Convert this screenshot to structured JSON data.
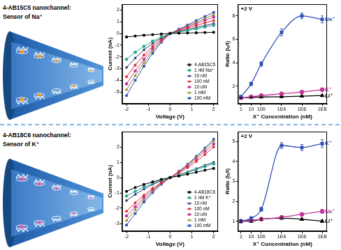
{
  "illustrations": [
    {
      "title": "4-AB15C5 nanochannel:",
      "subtitle": "Sensor of Na⁺"
    },
    {
      "title": "4-AB18C6 nanochannel:",
      "subtitle": "Sensor of K⁺"
    }
  ],
  "chart_data": [
    {
      "type": "line",
      "x_label": "Voltage (V)",
      "y_label": "Current (nA)",
      "x": [
        -2,
        -1.6,
        -1.2,
        -0.8,
        -0.4,
        0,
        0.4,
        0.8,
        1.2,
        1.6,
        2
      ],
      "xlim": [
        -2.2,
        2.2
      ],
      "xticks": [
        -2,
        -1,
        0,
        1,
        2
      ],
      "ylim": [
        -6,
        2.5
      ],
      "yticks": [
        -5,
        -4,
        -3,
        -2,
        -1,
        0,
        1,
        2
      ],
      "grid": false,
      "legend": "lower right",
      "series": [
        {
          "name": "4-AB15C5",
          "color": "#000000",
          "marker": "square",
          "line_style": "solid",
          "values": [
            -0.3,
            -0.22,
            -0.15,
            -0.1,
            -0.05,
            0,
            0.02,
            0.04,
            0.06,
            0.08,
            0.1
          ]
        },
        {
          "name": "1 nM Na⁺",
          "color": "#2aa58a",
          "marker": "circle",
          "line_style": "solid",
          "values": [
            -2.2,
            -1.6,
            -1.1,
            -0.65,
            -0.3,
            0,
            0.12,
            0.25,
            0.4,
            0.55,
            0.7
          ]
        },
        {
          "name": "10 nM",
          "color": "#2b2f6b",
          "marker": "triangle",
          "line_style": "solid",
          "values": [
            -2.9,
            -2.1,
            -1.4,
            -0.85,
            -0.38,
            0,
            0.16,
            0.33,
            0.5,
            0.68,
            0.85
          ]
        },
        {
          "name": "100 nM",
          "color": "#e0262b",
          "marker": "diamond",
          "line_style": "solid",
          "values": [
            -3.7,
            -2.7,
            -1.85,
            -1.1,
            -0.5,
            0,
            0.22,
            0.45,
            0.68,
            0.9,
            1.1
          ]
        },
        {
          "name": "10 uM",
          "color": "#c2389c",
          "marker": "circle",
          "line_style": "solid",
          "values": [
            -4.3,
            -3.2,
            -2.2,
            -1.3,
            -0.6,
            0,
            0.28,
            0.56,
            0.84,
            1.12,
            1.4
          ]
        },
        {
          "name": "1 mM",
          "color": "#8c8c1c",
          "marker": "triangle",
          "line_style": "solid",
          "values": [
            -4.8,
            -3.6,
            -2.5,
            -1.5,
            -0.68,
            0,
            0.32,
            0.64,
            0.96,
            1.28,
            1.6
          ]
        },
        {
          "name": "100 mM",
          "color": "#2d4fb5",
          "marker": "square",
          "line_style": "solid",
          "values": [
            -5.3,
            -4.0,
            -2.8,
            -1.7,
            -0.75,
            0,
            0.36,
            0.72,
            1.1,
            1.45,
            1.8
          ]
        }
      ]
    },
    {
      "type": "line",
      "log": "x",
      "annotation": "+2 V",
      "x_label": "X⁺ Concentration (nM)",
      "y_label": "Ratio (Iₓ/I)",
      "x": [
        1,
        10,
        100,
        10000,
        1000000,
        100000000
      ],
      "xlim": [
        0.5,
        300000000
      ],
      "xticks": [
        1,
        10,
        100,
        {
          "value": 10000,
          "label": "1E4"
        },
        {
          "value": 1000000,
          "label": "1E6"
        },
        {
          "value": 100000000,
          "label": "1E8"
        }
      ],
      "ylim": [
        0.5,
        9
      ],
      "yticks": [
        2,
        4,
        6,
        8
      ],
      "grid": false,
      "series": [
        {
          "name": "Na⁺",
          "color": "#2d4fb5",
          "marker": "square",
          "line_style": "smooth",
          "values": [
            1.1,
            2.2,
            3.9,
            6.6,
            8.0,
            7.7
          ],
          "errors": [
            0.1,
            0.15,
            0.2,
            0.3,
            0.25,
            0.3
          ]
        },
        {
          "name": "K⁺",
          "color": "#c2389c",
          "marker": "circle",
          "line_style": "smooth",
          "values": [
            1.0,
            1.1,
            1.2,
            1.35,
            1.5,
            1.7
          ],
          "errors": [
            0.05,
            0.05,
            0.08,
            0.08,
            0.1,
            0.1
          ]
        },
        {
          "name": "Li⁺",
          "color": "#000000",
          "marker": "triangle",
          "line_style": "smooth",
          "values": [
            1.0,
            1.05,
            1.08,
            1.1,
            1.15,
            1.2
          ],
          "errors": [
            0.05,
            0.05,
            0.05,
            0.05,
            0.05,
            0.05
          ]
        }
      ]
    },
    {
      "type": "line",
      "x_label": "Voltage (V)",
      "y_label": "Current (nA)",
      "x": [
        -2,
        -1.6,
        -1.2,
        -0.8,
        -0.4,
        0,
        0.4,
        0.8,
        1.2,
        1.6,
        2
      ],
      "xlim": [
        -2.2,
        2.2
      ],
      "xticks": [
        -2,
        -1,
        0,
        1,
        2
      ],
      "ylim": [
        -3.5,
        3
      ],
      "yticks": [
        -3,
        -2,
        -1,
        0,
        1,
        2
      ],
      "grid": false,
      "legend": "lower right",
      "series": [
        {
          "name": "4-AB18C6",
          "color": "#000000",
          "marker": "square",
          "line_style": "solid",
          "values": [
            -0.9,
            -0.65,
            -0.45,
            -0.28,
            -0.12,
            0,
            0.1,
            0.22,
            0.35,
            0.48,
            0.6
          ]
        },
        {
          "name": "1 nM K⁺",
          "color": "#2aa58a",
          "marker": "circle",
          "line_style": "solid",
          "values": [
            -1.2,
            -0.9,
            -0.62,
            -0.38,
            -0.17,
            0,
            0.15,
            0.33,
            0.52,
            0.72,
            0.9
          ]
        },
        {
          "name": "10 nM",
          "color": "#2b2f6b",
          "marker": "triangle",
          "line_style": "solid",
          "values": [
            -1.5,
            -1.1,
            -0.75,
            -0.45,
            -0.2,
            0,
            0.17,
            0.37,
            0.58,
            0.8,
            1.0
          ]
        },
        {
          "name": "100 nM",
          "color": "#e0262b",
          "marker": "diamond",
          "line_style": "solid",
          "values": [
            -2.2,
            -1.65,
            -1.15,
            -0.7,
            -0.32,
            0,
            0.3,
            0.65,
            1.05,
            1.5,
            2.0
          ]
        },
        {
          "name": "10 uM",
          "color": "#c2389c",
          "marker": "circle",
          "line_style": "solid",
          "values": [
            -2.5,
            -1.9,
            -1.3,
            -0.8,
            -0.36,
            0,
            0.35,
            0.75,
            1.2,
            1.7,
            2.2
          ]
        },
        {
          "name": "1 mM",
          "color": "#8c8c1c",
          "marker": "triangle",
          "line_style": "solid",
          "values": [
            -2.8,
            -2.1,
            -1.45,
            -0.88,
            -0.4,
            0,
            0.38,
            0.82,
            1.32,
            1.85,
            2.4
          ]
        },
        {
          "name": "100 mM",
          "color": "#2d4fb5",
          "marker": "square",
          "line_style": "solid",
          "values": [
            -3.1,
            -2.35,
            -1.6,
            -0.98,
            -0.44,
            0,
            0.4,
            0.86,
            1.38,
            1.93,
            2.5
          ]
        }
      ]
    },
    {
      "type": "line",
      "log": "x",
      "annotation": "+2 V",
      "x_label": "X⁺ Concentration (nM)",
      "y_label": "Ratio (Iₓ/I)",
      "x": [
        1,
        10,
        100,
        10000,
        1000000,
        100000000
      ],
      "xlim": [
        0.5,
        300000000
      ],
      "xticks": [
        1,
        10,
        100,
        {
          "value": 10000,
          "label": "1E4"
        },
        {
          "value": 1000000,
          "label": "1E6"
        },
        {
          "value": 100000000,
          "label": "1E8"
        }
      ],
      "ylim": [
        0.5,
        5.5
      ],
      "yticks": [
        1,
        2,
        3,
        4,
        5
      ],
      "grid": false,
      "series": [
        {
          "name": "K⁺",
          "color": "#2d4fb5",
          "marker": "square",
          "line_style": "smooth",
          "values": [
            1.0,
            1.15,
            1.6,
            4.8,
            4.7,
            4.9
          ],
          "errors": [
            0.05,
            0.08,
            0.1,
            0.15,
            0.15,
            0.2
          ]
        },
        {
          "name": "Na⁺",
          "color": "#c2389c",
          "marker": "circle",
          "line_style": "smooth",
          "values": [
            1.0,
            1.05,
            1.1,
            1.2,
            1.35,
            1.5
          ],
          "errors": [
            0.05,
            0.05,
            0.05,
            0.06,
            0.08,
            0.1
          ]
        },
        {
          "name": "Li⁺",
          "color": "#000000",
          "marker": "triangle",
          "line_style": "smooth",
          "values": [
            1.0,
            1.0,
            1.1,
            1.15,
            1.1,
            1.0
          ],
          "errors": [
            0.05,
            0.05,
            0.05,
            0.05,
            0.05,
            0.05
          ]
        }
      ]
    }
  ]
}
